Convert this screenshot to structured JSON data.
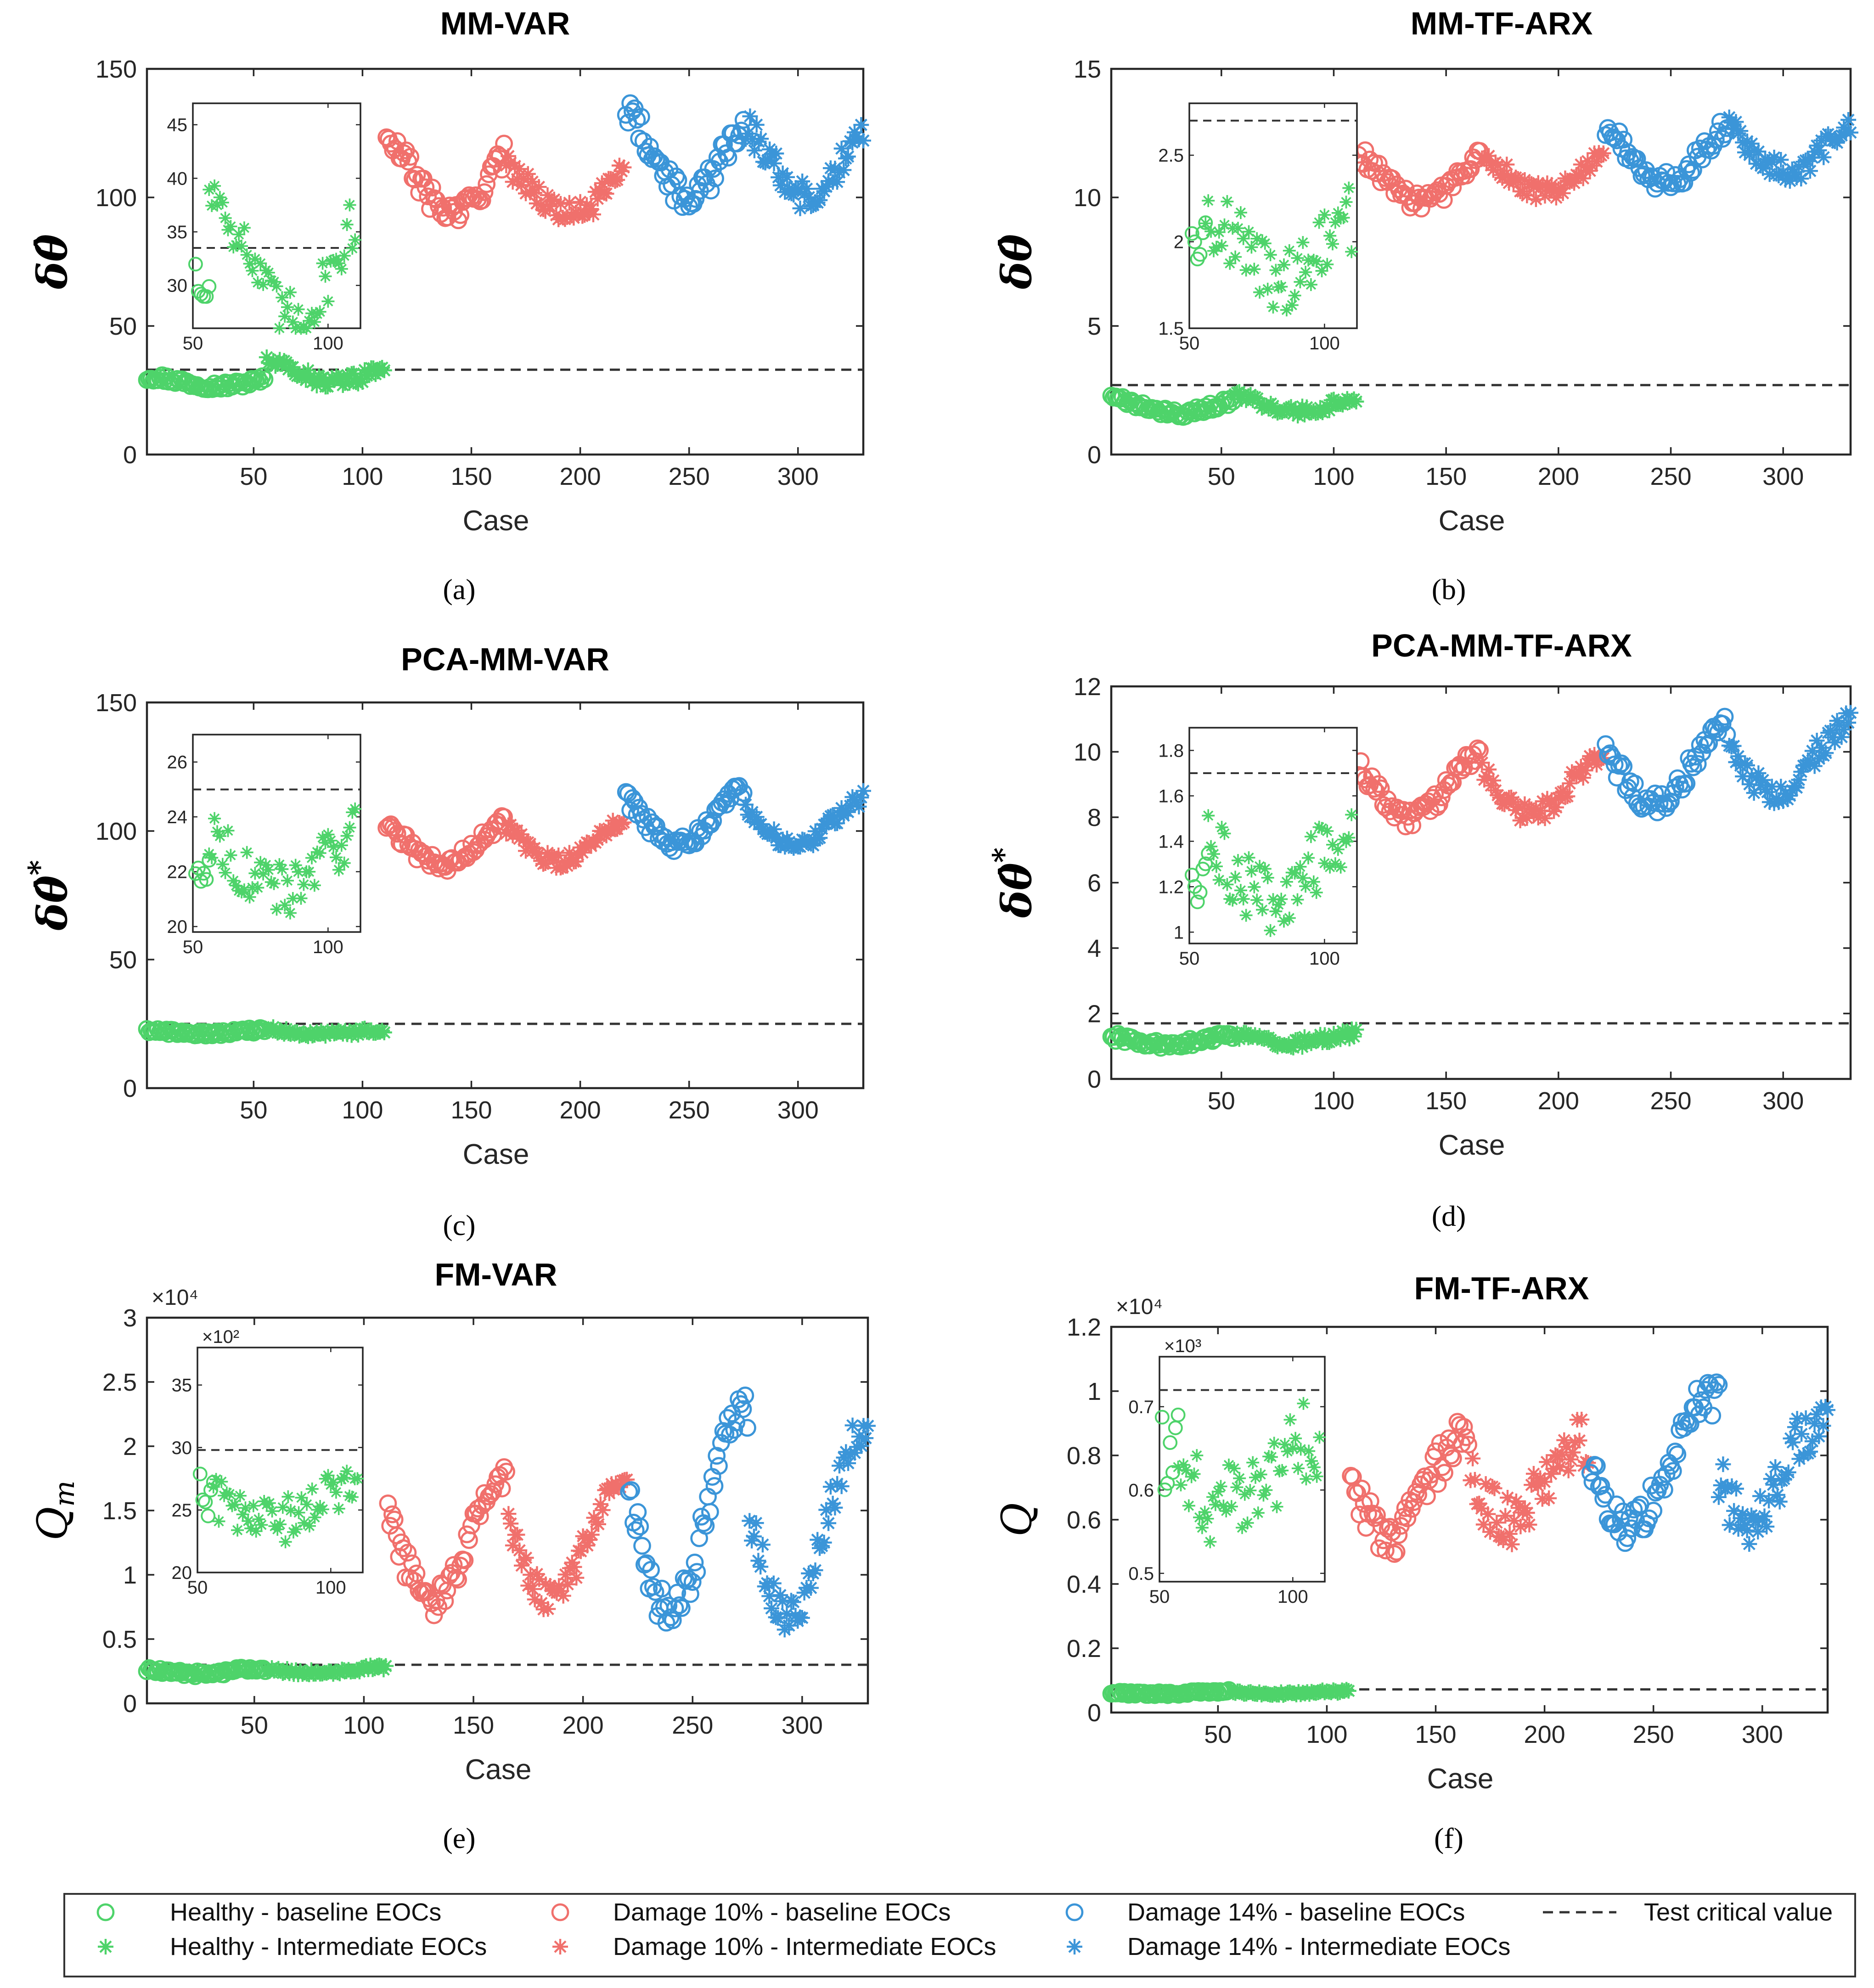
{
  "colors": {
    "healthy": "#4ed36a",
    "damage10": "#f0706c",
    "damage14": "#3b95d8",
    "critical": "#333333"
  },
  "legend": {
    "items": [
      {
        "label": "Healthy - baseline  EOCs",
        "color": "#4ed36a",
        "marker": "circle"
      },
      {
        "label": "Healthy - Intermediate  EOCs",
        "color": "#4ed36a",
        "marker": "star"
      },
      {
        "label": "Damage 10% - baseline  EOCs",
        "color": "#f0706c",
        "marker": "circle"
      },
      {
        "label": "Damage 10% - Intermediate  EOCs",
        "color": "#f0706c",
        "marker": "star"
      },
      {
        "label": "Damage 14% - baseline  EOCs",
        "color": "#3b95d8",
        "marker": "circle"
      },
      {
        "label": "Damage 14% - Intermediate  EOCs",
        "color": "#3b95d8",
        "marker": "star"
      },
      {
        "label": "Test critical value",
        "color": "#333333",
        "marker": "dash"
      }
    ]
  },
  "chart_data": [
    {
      "id": "a",
      "caption": "(a)",
      "type": "scatter",
      "title": "MM-VAR",
      "xlabel": "Case",
      "ylabel": "δθ̂",
      "ylabel_kind": "theta",
      "xlim": [
        1,
        330
      ],
      "ylim": [
        0,
        150
      ],
      "xticks": [
        50,
        100,
        150,
        200,
        250,
        300
      ],
      "yticks": [
        0,
        50,
        100,
        150
      ],
      "critical": 33,
      "groups": [
        {
          "series": "Healthy - baseline EOCs",
          "x_start": 1,
          "x_end": 55,
          "base": 28.5,
          "amp": 1.8,
          "noise": 1.5,
          "marker": "circle",
          "color_key": "healthy"
        },
        {
          "series": "Healthy - Intermediate EOCs",
          "x_start": 56,
          "x_end": 110,
          "base": 32,
          "amp": 4,
          "noise": 2.5,
          "marker": "star",
          "color_key": "healthy"
        },
        {
          "series": "Damage 10% - baseline EOCs",
          "x_start": 111,
          "x_end": 165,
          "base": 108,
          "amp": 14,
          "noise": 5,
          "marker": "circle",
          "color_key": "damage10"
        },
        {
          "series": "Damage 10% - Intermediate EOCs",
          "x_start": 166,
          "x_end": 220,
          "base": 103,
          "amp": 10,
          "noise": 5,
          "marker": "star",
          "color_key": "damage10"
        },
        {
          "series": "Damage 14% - baseline EOCs",
          "x_start": 221,
          "x_end": 275,
          "base": 118,
          "amp": 18,
          "noise": 6,
          "marker": "circle",
          "color_key": "damage14"
        },
        {
          "series": "Damage 14% - Intermediate EOCs",
          "x_start": 276,
          "x_end": 330,
          "base": 115,
          "amp": 14,
          "noise": 6,
          "marker": "star",
          "color_key": "damage14"
        }
      ],
      "inset": {
        "xlim": [
          50,
          112
        ],
        "ylim": [
          26,
          47
        ],
        "xticks": [
          50,
          100
        ],
        "yticks": [
          30,
          35,
          40,
          45
        ],
        "critical": 33.5,
        "groups": [
          {
            "x_start": 51,
            "x_end": 56,
            "base": 30,
            "amp": 1.5,
            "noise": 1.2,
            "marker": "circle",
            "color_key": "healthy"
          },
          {
            "x_start": 56,
            "x_end": 110,
            "base": 33,
            "amp": 6,
            "noise": 2.5,
            "marker": "star",
            "color_key": "healthy"
          }
        ]
      },
      "multiplier": "",
      "inset_multiplier": ""
    },
    {
      "id": "b",
      "caption": "(b)",
      "type": "scatter",
      "title": "MM-TF-ARX",
      "xlabel": "Case",
      "ylabel": "δθ̂",
      "ylabel_kind": "theta",
      "xlim": [
        1,
        330
      ],
      "ylim": [
        0,
        15
      ],
      "xticks": [
        50,
        100,
        150,
        200,
        250,
        300
      ],
      "yticks": [
        0,
        5,
        10,
        15
      ],
      "critical": 2.7,
      "groups": [
        {
          "series": "Healthy - baseline EOCs",
          "x_start": 1,
          "x_end": 55,
          "base": 1.9,
          "amp": 0.3,
          "noise": 0.15,
          "marker": "circle",
          "color_key": "healthy"
        },
        {
          "series": "Healthy - Intermediate EOCs",
          "x_start": 56,
          "x_end": 110,
          "base": 2.0,
          "amp": 0.3,
          "noise": 0.2,
          "marker": "star",
          "color_key": "healthy"
        },
        {
          "series": "Damage 10% - baseline EOCs",
          "x_start": 111,
          "x_end": 165,
          "base": 10.8,
          "amp": 1.0,
          "noise": 0.35,
          "marker": "circle",
          "color_key": "damage10"
        },
        {
          "series": "Damage 10% - Intermediate EOCs",
          "x_start": 166,
          "x_end": 220,
          "base": 11.0,
          "amp": 0.8,
          "noise": 0.35,
          "marker": "star",
          "color_key": "damage10"
        },
        {
          "series": "Damage 14% - baseline EOCs",
          "x_start": 221,
          "x_end": 275,
          "base": 11.8,
          "amp": 1.2,
          "noise": 0.4,
          "marker": "circle",
          "color_key": "damage14"
        },
        {
          "series": "Damage 14% - Intermediate EOCs",
          "x_start": 276,
          "x_end": 330,
          "base": 12.0,
          "amp": 1.0,
          "noise": 0.45,
          "marker": "star",
          "color_key": "damage14"
        }
      ],
      "inset": {
        "xlim": [
          50,
          112
        ],
        "ylim": [
          1.5,
          2.8
        ],
        "xticks": [
          50,
          100
        ],
        "yticks": [
          1.5,
          2,
          2.5
        ],
        "critical": 2.7,
        "groups": [
          {
            "x_start": 51,
            "x_end": 56,
            "base": 2.0,
            "amp": 0.05,
            "noise": 0.08,
            "marker": "circle",
            "color_key": "healthy"
          },
          {
            "x_start": 56,
            "x_end": 110,
            "base": 2.0,
            "amp": 0.2,
            "noise": 0.2,
            "marker": "star",
            "color_key": "healthy"
          }
        ]
      },
      "multiplier": "",
      "inset_multiplier": ""
    },
    {
      "id": "c",
      "caption": "(c)",
      "type": "scatter",
      "title": "PCA-MM-VAR",
      "xlabel": "Case",
      "ylabel": "δθ̂*",
      "ylabel_kind": "theta_star",
      "xlim": [
        1,
        330
      ],
      "ylim": [
        0,
        150
      ],
      "xticks": [
        50,
        100,
        150,
        200,
        250,
        300
      ],
      "yticks": [
        0,
        50,
        100,
        150
      ],
      "critical": 25,
      "groups": [
        {
          "series": "Healthy - baseline EOCs",
          "x_start": 1,
          "x_end": 55,
          "base": 22,
          "amp": 0.8,
          "noise": 1.0,
          "marker": "circle",
          "color_key": "healthy"
        },
        {
          "series": "Healthy - Intermediate EOCs",
          "x_start": 56,
          "x_end": 110,
          "base": 22,
          "amp": 1.0,
          "noise": 1.2,
          "marker": "star",
          "color_key": "healthy"
        },
        {
          "series": "Damage 10% - baseline EOCs",
          "x_start": 111,
          "x_end": 165,
          "base": 96,
          "amp": 9,
          "noise": 3,
          "marker": "circle",
          "color_key": "damage10"
        },
        {
          "series": "Damage 10% - Intermediate EOCs",
          "x_start": 166,
          "x_end": 220,
          "base": 96,
          "amp": 8,
          "noise": 3,
          "marker": "star",
          "color_key": "damage10"
        },
        {
          "series": "Damage 14% - baseline EOCs",
          "x_start": 221,
          "x_end": 275,
          "base": 106,
          "amp": 11,
          "noise": 3,
          "marker": "circle",
          "color_key": "damage14"
        },
        {
          "series": "Damage 14% - Intermediate EOCs",
          "x_start": 276,
          "x_end": 330,
          "base": 104,
          "amp": 9,
          "noise": 3,
          "marker": "star",
          "color_key": "damage14"
        }
      ],
      "inset": {
        "xlim": [
          50,
          112
        ],
        "ylim": [
          19.8,
          27
        ],
        "xticks": [
          50,
          100
        ],
        "yticks": [
          20,
          22,
          24,
          26
        ],
        "critical": 25,
        "groups": [
          {
            "x_start": 51,
            "x_end": 56,
            "base": 21.8,
            "amp": 0.4,
            "noise": 0.5,
            "marker": "circle",
            "color_key": "healthy"
          },
          {
            "x_start": 56,
            "x_end": 110,
            "base": 22.5,
            "amp": 1.2,
            "noise": 1.0,
            "marker": "star",
            "color_key": "healthy"
          }
        ]
      },
      "multiplier": "",
      "inset_multiplier": ""
    },
    {
      "id": "d",
      "caption": "(d)",
      "type": "scatter",
      "title": "PCA-MM-TF-ARX",
      "xlabel": "Case",
      "ylabel": "δθ̂*",
      "ylabel_kind": "theta_star",
      "xlim": [
        1,
        330
      ],
      "ylim": [
        0,
        12
      ],
      "xticks": [
        50,
        100,
        150,
        200,
        250,
        300
      ],
      "yticks": [
        0,
        2,
        4,
        6,
        8,
        10,
        12
      ],
      "critical": 1.7,
      "groups": [
        {
          "series": "Healthy - baseline EOCs",
          "x_start": 1,
          "x_end": 55,
          "base": 1.2,
          "amp": 0.15,
          "noise": 0.12,
          "marker": "circle",
          "color_key": "healthy"
        },
        {
          "series": "Healthy - Intermediate EOCs",
          "x_start": 56,
          "x_end": 110,
          "base": 1.25,
          "amp": 0.15,
          "noise": 0.15,
          "marker": "star",
          "color_key": "healthy"
        },
        {
          "series": "Damage 10% - baseline EOCs",
          "x_start": 111,
          "x_end": 165,
          "base": 9.0,
          "amp": 1.0,
          "noise": 0.3,
          "marker": "circle",
          "color_key": "damage10"
        },
        {
          "series": "Damage 10% - Intermediate EOCs",
          "x_start": 166,
          "x_end": 220,
          "base": 9.0,
          "amp": 0.9,
          "noise": 0.3,
          "marker": "star",
          "color_key": "damage10"
        },
        {
          "series": "Damage 14% - baseline EOCs",
          "x_start": 221,
          "x_end": 275,
          "base": 9.6,
          "amp": 1.2,
          "noise": 0.35,
          "marker": "circle",
          "color_key": "damage14"
        },
        {
          "series": "Damage 14% - Intermediate EOCs",
          "x_start": 276,
          "x_end": 330,
          "base": 9.8,
          "amp": 1.1,
          "noise": 0.4,
          "marker": "star",
          "color_key": "damage14"
        }
      ],
      "inset": {
        "xlim": [
          50,
          112
        ],
        "ylim": [
          0.95,
          1.9
        ],
        "xticks": [
          50,
          100
        ],
        "yticks": [
          1,
          1.2,
          1.4,
          1.6,
          1.8
        ],
        "critical": 1.7,
        "groups": [
          {
            "x_start": 51,
            "x_end": 57,
            "base": 1.25,
            "amp": 0.1,
            "noise": 0.08,
            "marker": "circle",
            "color_key": "healthy"
          },
          {
            "x_start": 57,
            "x_end": 110,
            "base": 1.3,
            "amp": 0.15,
            "noise": 0.15,
            "marker": "star",
            "color_key": "healthy"
          }
        ]
      },
      "multiplier": "",
      "inset_multiplier": ""
    },
    {
      "id": "e",
      "caption": "(e)",
      "type": "scatter",
      "title": "FM-VAR",
      "xlabel": "Case",
      "ylabel": "Qm",
      "ylabel_kind": "qm",
      "xlim": [
        1,
        330
      ],
      "ylim": [
        0,
        3
      ],
      "xticks": [
        50,
        100,
        150,
        200,
        250,
        300
      ],
      "yticks": [
        0,
        0.5,
        1,
        1.5,
        2,
        2.5,
        3
      ],
      "critical": 0.3,
      "groups": [
        {
          "series": "Healthy - baseline EOCs",
          "x_start": 1,
          "x_end": 55,
          "base": 0.25,
          "amp": 0.02,
          "noise": 0.02,
          "marker": "circle",
          "color_key": "healthy"
        },
        {
          "series": "Healthy - Intermediate EOCs",
          "x_start": 56,
          "x_end": 110,
          "base": 0.26,
          "amp": 0.02,
          "noise": 0.02,
          "marker": "star",
          "color_key": "healthy"
        },
        {
          "series": "Damage 10% - baseline EOCs",
          "x_start": 111,
          "x_end": 165,
          "base": 1.3,
          "amp": 0.5,
          "noise": 0.12,
          "marker": "circle",
          "color_key": "damage10"
        },
        {
          "series": "Damage 10% - Intermediate EOCs",
          "x_start": 166,
          "x_end": 220,
          "base": 1.3,
          "amp": 0.5,
          "noise": 0.12,
          "marker": "star",
          "color_key": "damage10"
        },
        {
          "series": "Damage 14% - baseline EOCs",
          "x_start": 221,
          "x_end": 275,
          "base": 1.5,
          "amp": 0.8,
          "noise": 0.15,
          "marker": "circle",
          "color_key": "damage14"
        },
        {
          "series": "Damage 14% - Intermediate EOCs",
          "x_start": 276,
          "x_end": 330,
          "base": 1.4,
          "amp": 0.7,
          "noise": 0.15,
          "marker": "star",
          "color_key": "damage14"
        }
      ],
      "inset": {
        "xlim": [
          50,
          112
        ],
        "ylim": [
          20,
          38
        ],
        "xticks": [
          50,
          100
        ],
        "yticks": [
          20,
          25,
          30,
          35
        ],
        "critical": 29.8,
        "groups": [
          {
            "x_start": 51,
            "x_end": 56,
            "base": 26,
            "amp": 1.5,
            "noise": 1.5,
            "marker": "circle",
            "color_key": "healthy"
          },
          {
            "x_start": 56,
            "x_end": 110,
            "base": 25.5,
            "amp": 1.5,
            "noise": 1.8,
            "marker": "star",
            "color_key": "healthy"
          }
        ]
      },
      "multiplier": "×10⁴",
      "inset_multiplier": "×10²"
    },
    {
      "id": "f",
      "caption": "(f)",
      "type": "scatter",
      "title": "FM-TF-ARX",
      "xlabel": "Case",
      "ylabel": "Q",
      "ylabel_kind": "q",
      "xlim": [
        1,
        330
      ],
      "ylim": [
        0,
        1.2
      ],
      "xticks": [
        50,
        100,
        150,
        200,
        250,
        300
      ],
      "yticks": [
        0,
        0.2,
        0.4,
        0.6,
        0.8,
        1,
        1.2
      ],
      "critical": 0.072,
      "groups": [
        {
          "series": "Healthy - baseline EOCs",
          "x_start": 1,
          "x_end": 55,
          "base": 0.062,
          "amp": 0.004,
          "noise": 0.005,
          "marker": "circle",
          "color_key": "healthy"
        },
        {
          "series": "Healthy - Intermediate EOCs",
          "x_start": 56,
          "x_end": 110,
          "base": 0.062,
          "amp": 0.004,
          "noise": 0.005,
          "marker": "star",
          "color_key": "healthy"
        },
        {
          "series": "Damage 10% - baseline EOCs",
          "x_start": 111,
          "x_end": 165,
          "base": 0.7,
          "amp": 0.15,
          "noise": 0.06,
          "marker": "circle",
          "color_key": "damage10"
        },
        {
          "series": "Damage 10% - Intermediate EOCs",
          "x_start": 166,
          "x_end": 220,
          "base": 0.72,
          "amp": 0.12,
          "noise": 0.08,
          "marker": "star",
          "color_key": "damage10"
        },
        {
          "series": "Damage 14% - baseline EOCs",
          "x_start": 221,
          "x_end": 280,
          "base": 0.78,
          "amp": 0.2,
          "noise": 0.06,
          "marker": "circle",
          "color_key": "damage14"
        },
        {
          "series": "Damage 14% - Intermediate EOCs",
          "x_start": 280,
          "x_end": 330,
          "base": 0.75,
          "amp": 0.15,
          "noise": 0.08,
          "marker": "star",
          "color_key": "damage14"
        }
      ],
      "inset": {
        "xlim": [
          50,
          112
        ],
        "ylim": [
          0.49,
          0.76
        ],
        "xticks": [
          50,
          100
        ],
        "yticks": [
          0.5,
          0.6,
          0.7
        ],
        "critical": 0.72,
        "groups": [
          {
            "x_start": 51,
            "x_end": 57,
            "base": 0.66,
            "amp": 0.05,
            "noise": 0.04,
            "marker": "circle",
            "color_key": "healthy"
          },
          {
            "x_start": 57,
            "x_end": 110,
            "base": 0.62,
            "amp": 0.04,
            "noise": 0.05,
            "marker": "star",
            "color_key": "healthy"
          }
        ]
      },
      "multiplier": "×10⁴",
      "inset_multiplier": "×10³"
    }
  ]
}
